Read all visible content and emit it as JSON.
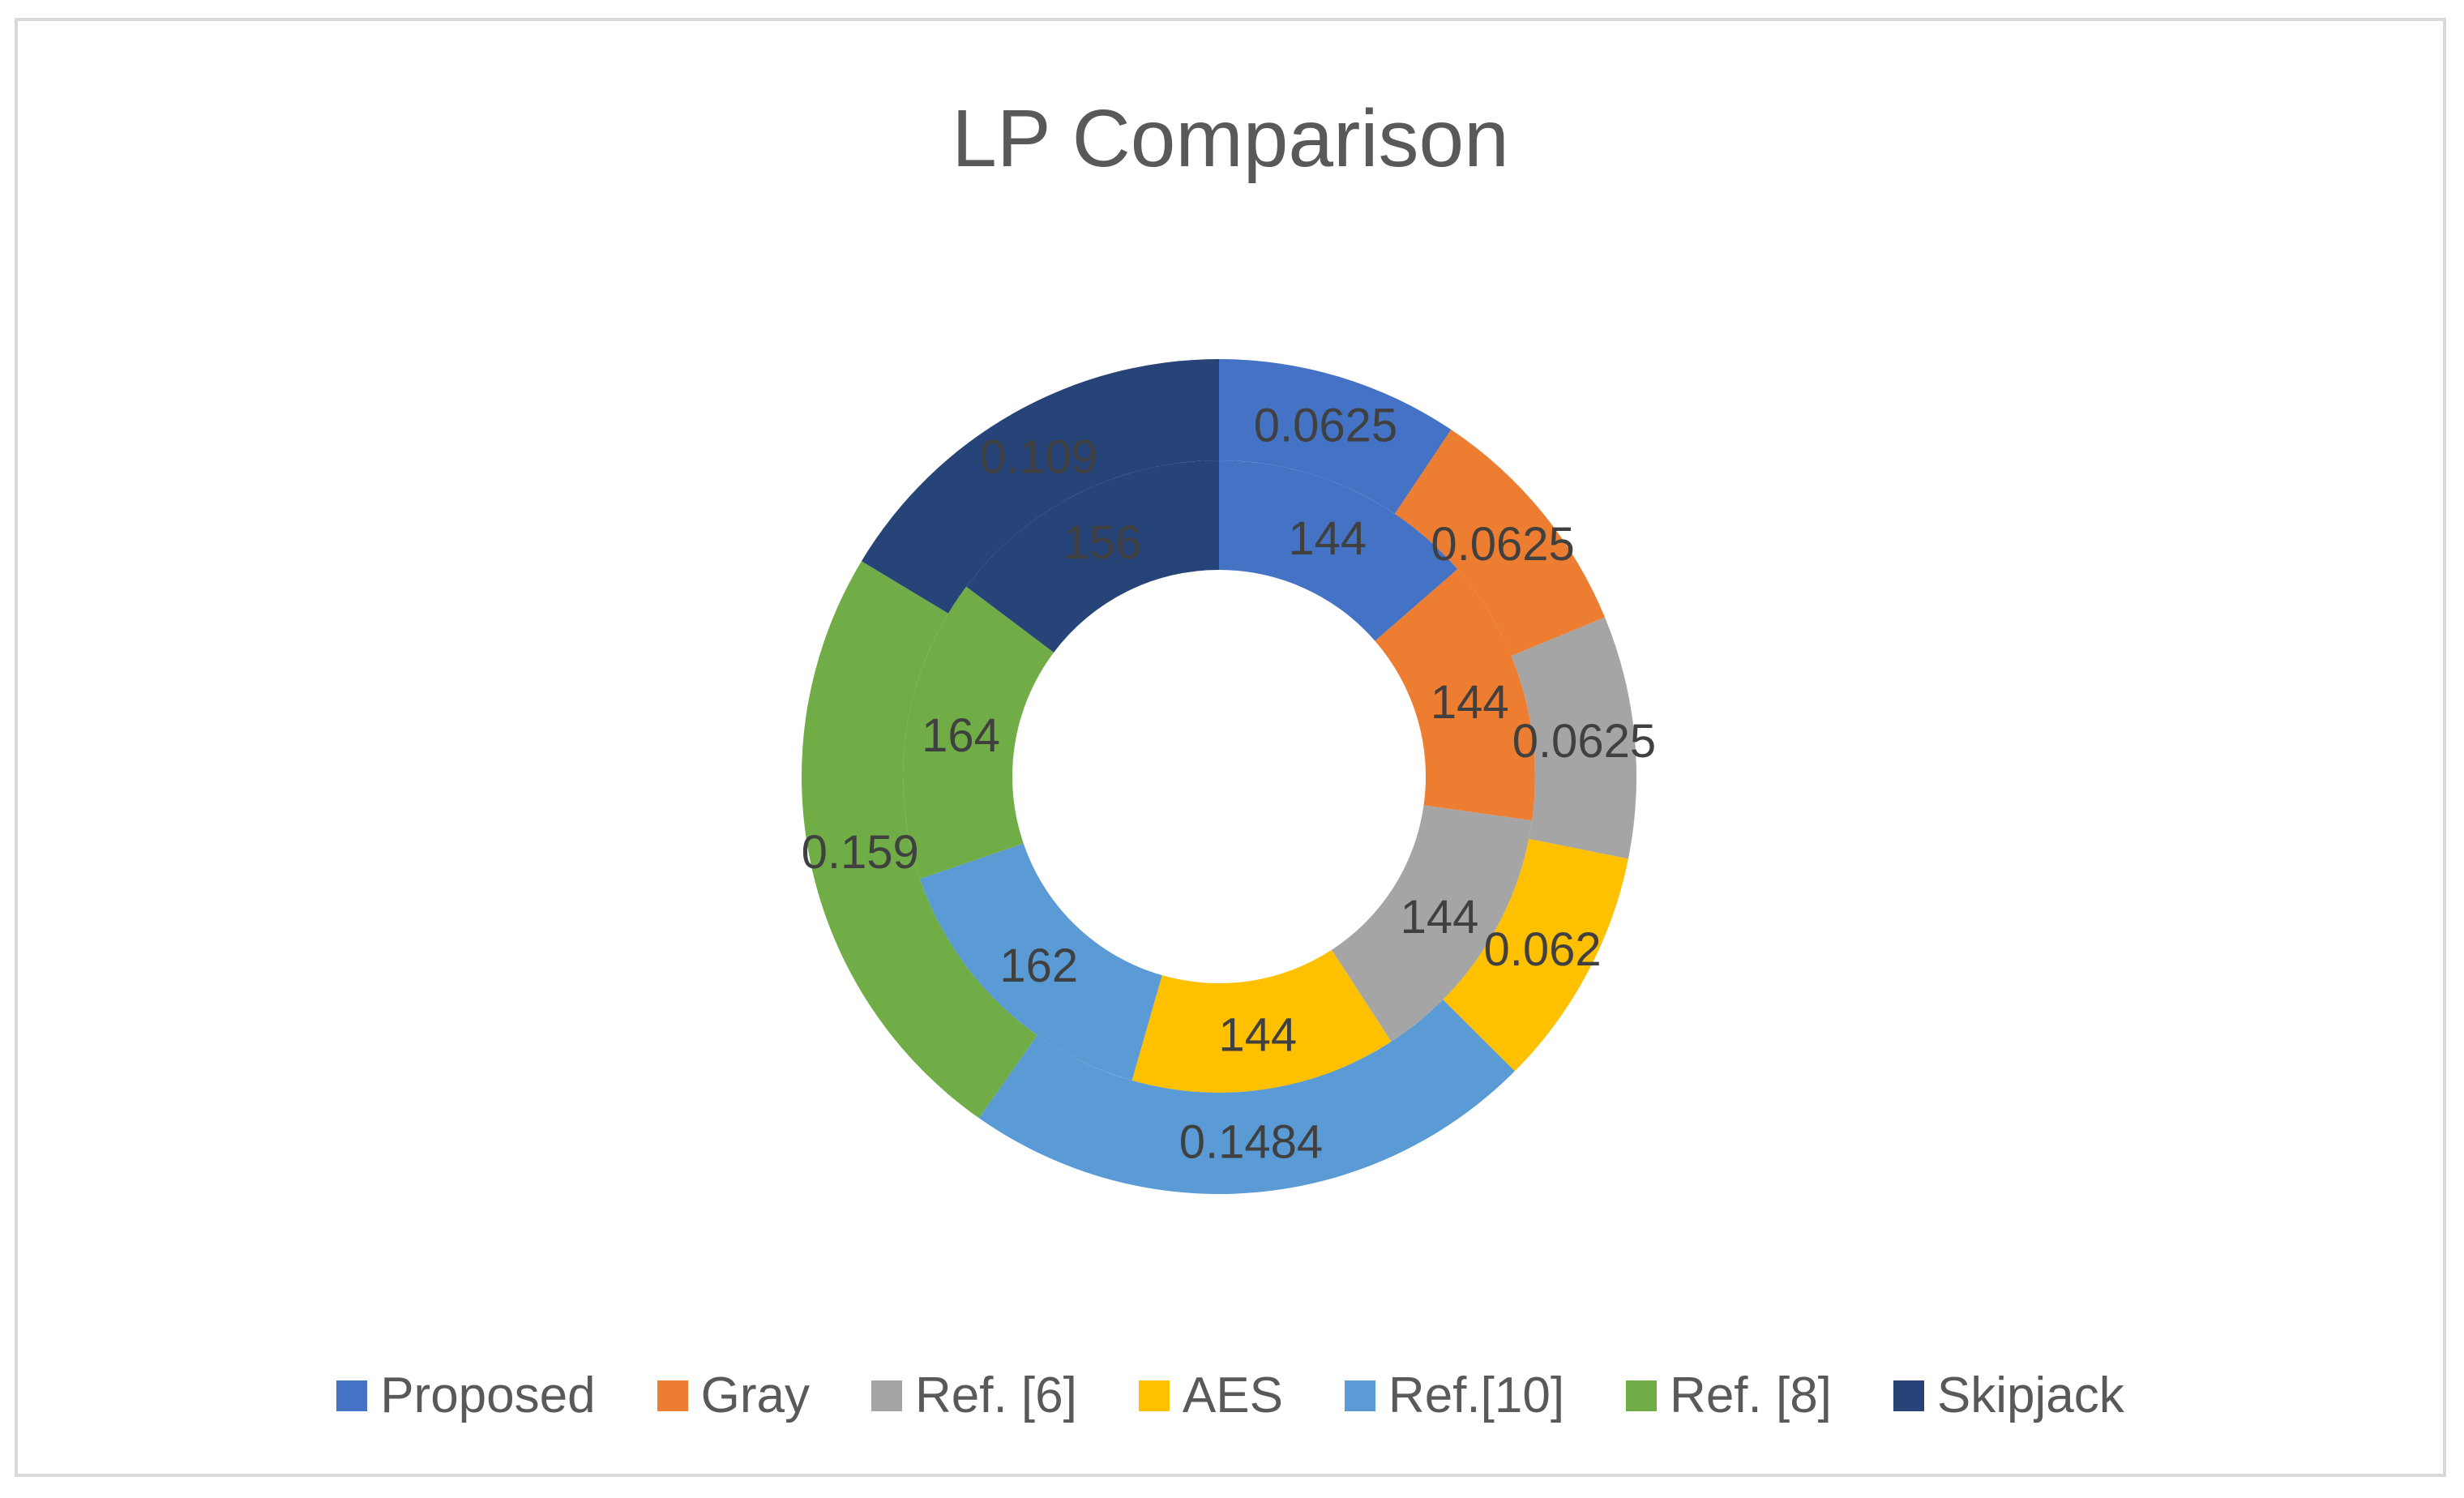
{
  "chart_data": {
    "type": "doughnut",
    "title": "LP Comparison",
    "categories": [
      "Proposed",
      "Gray",
      "Ref. [6]",
      "AES",
      "Ref.[10]",
      "Ref. [8]",
      "Skipjack"
    ],
    "colors": [
      "#4472c4",
      "#ed7d31",
      "#a5a5a5",
      "#ffc000",
      "#5b9bd5",
      "#70ad47",
      "#264478"
    ],
    "series": [
      {
        "values": [
          144,
          144,
          144,
          144,
          162,
          164,
          156
        ]
      },
      {
        "values": [
          0.0625,
          0.0625,
          0.0625,
          0.062,
          0.1484,
          0.159,
          0.109
        ]
      }
    ],
    "inner_labels": [
      "144",
      "144",
      "144",
      "144",
      "162",
      "164",
      "156"
    ],
    "outer_labels": [
      "0.0625",
      "0.0625",
      "0.0625",
      "0.062",
      "0.1484",
      "0.159",
      "0.109"
    ],
    "legend_position": "bottom"
  }
}
